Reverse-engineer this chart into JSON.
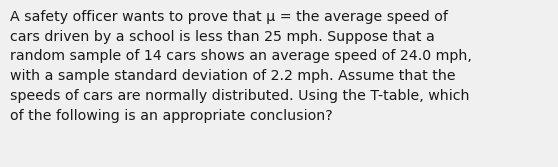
{
  "text": "A safety officer wants to prove that μ = the average speed of\ncars driven by a school is less than 25 mph. Suppose that a\nrandom sample of 14 cars shows an average speed of 24.0 mph,\nwith a sample standard deviation of 2.2 mph. Assume that the\nspeeds of cars are normally distributed. Using the T-table, which\nof the following is an appropriate conclusion?",
  "background_color": "#f0f0f0",
  "text_color": "#1a1a1a",
  "font_size": 10.2,
  "font_family": "DejaVu Sans",
  "fig_width": 5.58,
  "fig_height": 1.67,
  "dpi": 100
}
